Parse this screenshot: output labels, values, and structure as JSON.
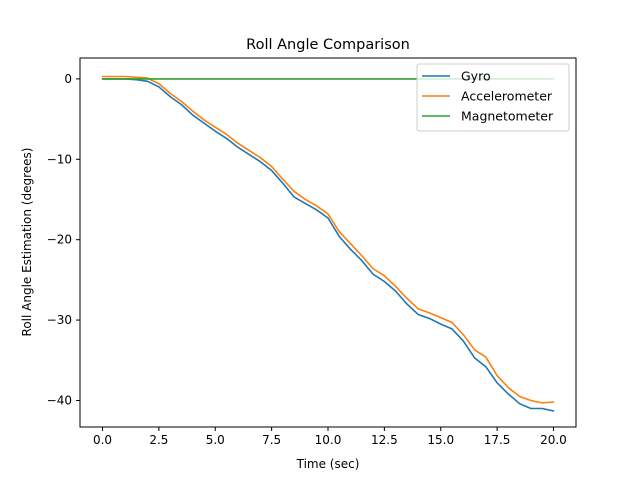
{
  "chart_data": {
    "type": "line",
    "title": "Roll Angle Comparison",
    "xlabel": "Time (sec)",
    "ylabel": "Roll Angle Estimation (degrees)",
    "xlim": [
      -1.0,
      21.0
    ],
    "ylim": [
      -43.3,
      2.6
    ],
    "x_ticks": [
      0.0,
      2.5,
      5.0,
      7.5,
      10.0,
      12.5,
      15.0,
      17.5,
      20.0
    ],
    "x_tick_labels": [
      "0.0",
      "2.5",
      "5.0",
      "7.5",
      "10.0",
      "12.5",
      "15.0",
      "17.5",
      "20.0"
    ],
    "y_ticks": [
      0,
      -10,
      -20,
      -30,
      -40
    ],
    "y_tick_labels": [
      "0",
      "−10",
      "−20",
      "−30",
      "−40"
    ],
    "grid": false,
    "legend_position": "top-right",
    "series": [
      {
        "name": "Gyro",
        "color": "#1f77b4",
        "x": [
          0.0,
          0.5,
          1.0,
          1.5,
          2.0,
          2.5,
          3.0,
          3.5,
          4.0,
          4.5,
          5.0,
          5.5,
          6.0,
          6.5,
          7.0,
          7.5,
          8.0,
          8.5,
          9.0,
          9.5,
          10.0,
          10.5,
          11.0,
          11.5,
          12.0,
          12.5,
          13.0,
          13.5,
          14.0,
          14.5,
          15.0,
          15.5,
          16.0,
          16.5,
          17.0,
          17.5,
          18.0,
          18.5,
          19.0,
          19.5,
          20.0
        ],
        "y": [
          0.0,
          0.0,
          0.0,
          -0.1,
          -0.3,
          -1.0,
          -2.2,
          -3.2,
          -4.5,
          -5.5,
          -6.5,
          -7.4,
          -8.5,
          -9.4,
          -10.3,
          -11.4,
          -13.0,
          -14.7,
          -15.5,
          -16.3,
          -17.3,
          -19.6,
          -21.2,
          -22.6,
          -24.3,
          -25.2,
          -26.4,
          -28.0,
          -29.3,
          -29.8,
          -30.5,
          -31.1,
          -32.6,
          -34.7,
          -35.8,
          -37.8,
          -39.2,
          -40.4,
          -41.0,
          -41.0,
          -41.3
        ]
      },
      {
        "name": "Accelerometer",
        "color": "#ff7f0e",
        "x": [
          0.0,
          0.5,
          1.0,
          1.5,
          2.0,
          2.5,
          3.0,
          3.5,
          4.0,
          4.5,
          5.0,
          5.5,
          6.0,
          6.5,
          7.0,
          7.5,
          8.0,
          8.5,
          9.0,
          9.5,
          10.0,
          10.5,
          11.0,
          11.5,
          12.0,
          12.5,
          13.0,
          13.5,
          14.0,
          14.5,
          15.0,
          15.5,
          16.0,
          16.5,
          17.0,
          17.5,
          18.0,
          18.5,
          19.0,
          19.5,
          20.0
        ],
        "y": [
          0.3,
          0.3,
          0.3,
          0.2,
          0.1,
          -0.6,
          -1.8,
          -2.8,
          -4.0,
          -5.1,
          -6.0,
          -6.9,
          -8.0,
          -8.9,
          -9.8,
          -10.9,
          -12.5,
          -14.0,
          -15.0,
          -15.8,
          -16.8,
          -19.0,
          -20.5,
          -22.0,
          -23.6,
          -24.5,
          -25.8,
          -27.3,
          -28.6,
          -29.1,
          -29.7,
          -30.3,
          -31.8,
          -33.7,
          -34.6,
          -36.9,
          -38.4,
          -39.5,
          -40.0,
          -40.3,
          -40.2
        ]
      },
      {
        "name": "Magnetometer",
        "color": "#2ca02c",
        "x": [
          0.0,
          20.0
        ],
        "y": [
          0.0,
          0.0
        ]
      }
    ]
  }
}
